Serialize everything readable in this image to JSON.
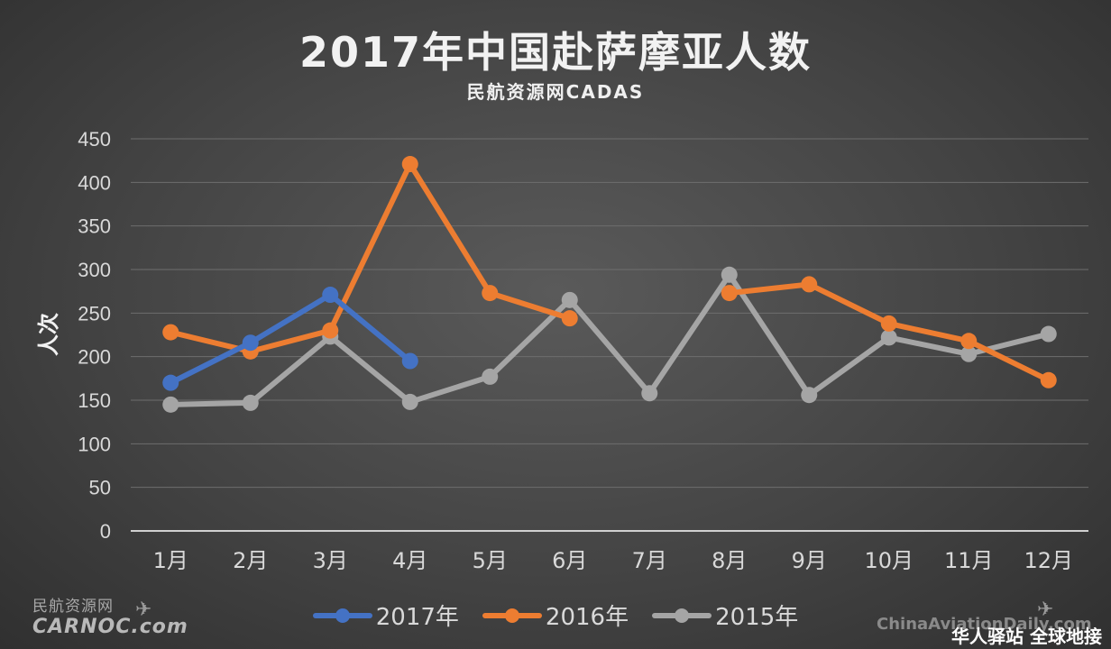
{
  "title": "2017年中国赴萨摩亚人数",
  "subtitle": "民航资源网CADAS",
  "watermarks": {
    "left_cn": "民航资源网",
    "left_brand": "CARNOC.com",
    "right_url": "ChinaAviationDaily.com",
    "right_slogan": "华人驿站 全球地接"
  },
  "chart_data": {
    "type": "line",
    "title": "2017年中国赴萨摩亚人数",
    "subtitle": "民航资源网CADAS",
    "xlabel": "",
    "ylabel": "人次",
    "ylim": [
      0,
      450
    ],
    "yticks": [
      0,
      50,
      100,
      150,
      200,
      250,
      300,
      350,
      400,
      450
    ],
    "grid": true,
    "legend_position": "bottom",
    "categories": [
      "1月",
      "2月",
      "3月",
      "4月",
      "5月",
      "6月",
      "7月",
      "8月",
      "9月",
      "10月",
      "11月",
      "12月"
    ],
    "series": [
      {
        "name": "2017年",
        "color": "#4472c4",
        "values": [
          170,
          216,
          271,
          195,
          null,
          null,
          null,
          null,
          null,
          null,
          null,
          null
        ]
      },
      {
        "name": "2016年",
        "color": "#ed7d31",
        "values": [
          228,
          206,
          230,
          421,
          273,
          244,
          null,
          273,
          283,
          238,
          218,
          173
        ]
      },
      {
        "name": "2015年",
        "color": "#a5a5a5",
        "values": [
          145,
          147,
          223,
          148,
          177,
          265,
          158,
          294,
          156,
          222,
          203,
          226
        ]
      }
    ]
  }
}
